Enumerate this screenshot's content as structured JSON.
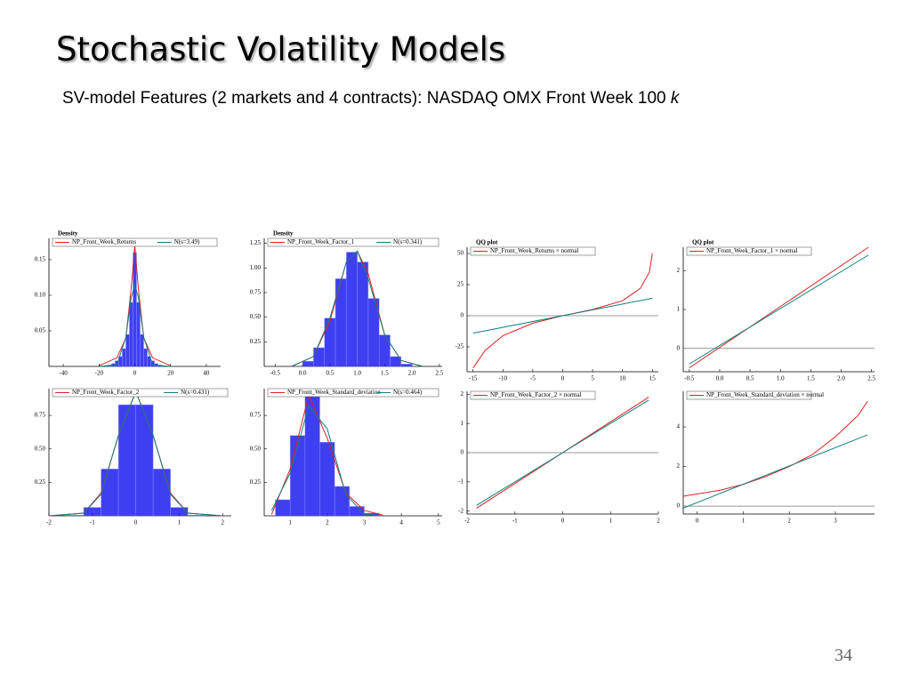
{
  "title": "Stochastic Volatility Models",
  "subtitle": "SV-model Features (2 markets and 4 contracts): NASDAQ OMX Front Week 100 ",
  "subtitle_italic": "k",
  "page_number": "34",
  "chart_data": [
    {
      "type": "histogram",
      "title": "Density",
      "color": "#0000ee",
      "bins": [
        -15,
        -13,
        -11,
        -9,
        -7,
        -5,
        -3,
        -1,
        1,
        3,
        5,
        7,
        9,
        11,
        13,
        15
      ],
      "counts": [
        0.002,
        0.004,
        0.008,
        0.014,
        0.025,
        0.045,
        0.09,
        0.16,
        0.09,
        0.045,
        0.025,
        0.014,
        0.008,
        0.004,
        0.002
      ],
      "series": [
        {
          "name": "NP_Front_Week_Returns",
          "color": "#e02020",
          "x": [
            -20,
            -10,
            -5,
            -2,
            0,
            2,
            5,
            10,
            20
          ],
          "values": [
            0.001,
            0.012,
            0.04,
            0.11,
            0.17,
            0.11,
            0.04,
            0.012,
            0.001
          ]
        },
        {
          "name": "N(s=3.49)",
          "color": "#108080",
          "x": [
            -20,
            -10,
            -5,
            -2,
            0,
            2,
            5,
            10,
            20
          ],
          "values": [
            0,
            0.002,
            0.041,
            0.097,
            0.114,
            0.097,
            0.041,
            0.002,
            0
          ]
        }
      ],
      "xlim": [
        -48,
        48
      ],
      "xticks": [
        -40,
        -20,
        0,
        20,
        40
      ],
      "ylim": [
        0,
        0.18
      ],
      "yticks": [
        0.05,
        {
          "value": 0.1,
          "label": "0.10"
        },
        0.15
      ]
    },
    {
      "type": "histogram",
      "title": "Density",
      "color": "#0000ee",
      "bins": [
        0,
        0.2,
        0.4,
        0.6,
        0.8,
        1,
        1.2,
        1.4,
        1.6,
        1.8,
        2
      ],
      "counts": [
        0.053,
        0.19,
        0.49,
        0.89,
        1.16,
        1.06,
        0.69,
        0.32,
        0.1,
        0.024
      ],
      "series": [
        {
          "name": "NP_Front_Week_Factor_1",
          "color": "#e02020",
          "x": [
            -0.2,
            0.2,
            0.5,
            0.8,
            1,
            1.2,
            1.5,
            1.8,
            2.2
          ],
          "values": [
            0,
            0.1,
            0.46,
            1.06,
            1.17,
            0.94,
            0.32,
            0.06,
            0
          ]
        },
        {
          "name": "N(s=0.341)",
          "color": "#108080",
          "x": [
            -0.2,
            0.2,
            0.5,
            0.8,
            1,
            1.2,
            1.5,
            1.8,
            2.2
          ],
          "values": [
            0,
            0.1,
            0.49,
            1.06,
            1.17,
            0.89,
            0.32,
            0.06,
            0
          ]
        }
      ],
      "xlim": [
        -0.7,
        2.55
      ],
      "xticks": [
        -0.5,
        {
          "value": 0,
          "label": "0.0"
        },
        0.5,
        {
          "value": 1,
          "label": "1.0"
        },
        1.5,
        {
          "value": 2,
          "label": "2.0"
        },
        2.5
      ],
      "ylim": [
        0,
        1.3
      ],
      "yticks": [
        0.25,
        {
          "value": 0.5,
          "label": "0.50"
        },
        0.75,
        {
          "value": 1,
          "label": "1.00"
        },
        1.25
      ]
    },
    {
      "type": "qq",
      "title": "QQ plot",
      "hline": 0,
      "series": [
        {
          "name": "NP_Front_Week_Returns × normal",
          "color": "#e02020",
          "x": [
            -15,
            -13,
            -10,
            -5,
            0,
            5,
            10,
            13,
            14.5,
            15
          ],
          "values": [
            -42,
            -28,
            -16,
            -6,
            0,
            5,
            12,
            22,
            35,
            50
          ]
        },
        {
          "color": "#108080",
          "x": [
            -15,
            15
          ],
          "values": [
            -14,
            14
          ]
        }
      ],
      "xlim": [
        -16,
        16
      ],
      "xticks": [
        -15,
        -10,
        -5,
        0,
        5,
        10,
        15
      ],
      "ylim": [
        -45,
        55
      ],
      "yticks": [
        -25,
        0,
        25,
        50
      ]
    },
    {
      "type": "qq",
      "title": "QQ plot",
      "hline": 0,
      "series": [
        {
          "name": "NP_Front_Week_Factor_1 × normal",
          "color": "#e02020",
          "x": [
            -0.5,
            2.45
          ],
          "values": [
            -0.5,
            2.6
          ]
        },
        {
          "color": "#108080",
          "x": [
            -0.5,
            2.45
          ],
          "values": [
            -0.4,
            2.4
          ]
        }
      ],
      "xlim": [
        -0.6,
        2.55
      ],
      "xticks": [
        -0.5,
        {
          "value": 0,
          "label": "0.0"
        },
        0.5,
        {
          "value": 1,
          "label": "1.0"
        },
        1.5,
        {
          "value": 2,
          "label": "2.0"
        },
        2.5
      ],
      "ylim": [
        -0.6,
        2.6
      ],
      "yticks": [
        0,
        1,
        2
      ]
    },
    {
      "type": "histogram",
      "color": "#0000ee",
      "bins": [
        -1.6,
        -1.2,
        -0.8,
        -0.4,
        0,
        0.4,
        0.8,
        1.2,
        1.6
      ],
      "counts": [
        0.005,
        0.063,
        0.35,
        0.83,
        0.83,
        0.35,
        0.063,
        0.005
      ],
      "series": [
        {
          "name": "NP_Front_Week_Factor_2",
          "color": "#e02020",
          "x": [
            -2,
            -1.2,
            -0.8,
            -0.4,
            0,
            0.4,
            0.8,
            1.2,
            2
          ],
          "values": [
            0,
            0.02,
            0.17,
            0.6,
            0.93,
            0.6,
            0.17,
            0.02,
            0
          ]
        },
        {
          "name": "N(s=0.431)",
          "color": "#108080",
          "x": [
            -2,
            -1.2,
            -0.8,
            -0.4,
            0,
            0.4,
            0.8,
            1.2,
            2
          ],
          "values": [
            0,
            0.02,
            0.16,
            0.6,
            0.926,
            0.6,
            0.16,
            0.02,
            0
          ]
        }
      ],
      "xlim": [
        -2,
        2.2
      ],
      "xticks": [
        -2,
        -1,
        0,
        1,
        2
      ],
      "ylim": [
        0,
        0.95
      ],
      "yticks": [
        0.25,
        {
          "value": 0.5,
          "label": "0.50"
        },
        0.75
      ]
    },
    {
      "type": "histogram",
      "color": "#0000ee",
      "bins": [
        0.6,
        1,
        1.4,
        1.8,
        2.2,
        2.6,
        3,
        3.4
      ],
      "counts": [
        0.12,
        0.6,
        0.9,
        0.55,
        0.22,
        0.07,
        0.02
      ],
      "series": [
        {
          "name": "NP_Front_Week_Standard_deviation",
          "color": "#e02020",
          "x": [
            0.5,
            1,
            1.5,
            2,
            2.5,
            3,
            3.5
          ],
          "values": [
            0.01,
            0.35,
            0.9,
            0.58,
            0.17,
            0.04,
            0.005
          ]
        },
        {
          "name": "N(s=0.464)",
          "color": "#108080",
          "x": [
            0.5,
            1,
            1.5,
            2,
            2.5,
            3,
            3.5
          ],
          "values": [
            0.04,
            0.32,
            0.82,
            0.65,
            0.16,
            0.012,
            0
          ]
        }
      ],
      "xlim": [
        0.3,
        5.1
      ],
      "xticks": [
        1,
        2,
        3,
        4,
        5
      ],
      "ylim": [
        0,
        0.95
      ],
      "yticks": [
        0.25,
        {
          "value": 0.5,
          "label": "0.50"
        },
        0.75
      ]
    },
    {
      "type": "qq",
      "hline": 0,
      "series": [
        {
          "name": "NP_Front_Week_Factor_2 × normal",
          "color": "#e02020",
          "x": [
            -1.8,
            1.8
          ],
          "values": [
            -1.9,
            1.9
          ]
        },
        {
          "color": "#108080",
          "x": [
            -1.8,
            1.8
          ],
          "values": [
            -1.8,
            1.8
          ]
        }
      ],
      "xlim": [
        -2,
        2
      ],
      "xticks": [
        -2,
        -1,
        0,
        1,
        2
      ],
      "ylim": [
        -2.1,
        2.1
      ],
      "yticks": [
        -2,
        -1,
        0,
        1,
        2
      ]
    },
    {
      "type": "qq",
      "hline": 0,
      "series": [
        {
          "name": "NP_Front_Week_Standard_deviation × normal",
          "color": "#e02020",
          "x": [
            -0.3,
            0.5,
            1,
            1.5,
            2,
            2.5,
            3,
            3.5,
            3.7
          ],
          "values": [
            0.5,
            0.8,
            1.1,
            1.5,
            2,
            2.6,
            3.5,
            4.6,
            5.3
          ]
        },
        {
          "color": "#108080",
          "x": [
            -0.3,
            3.7
          ],
          "values": [
            -0.1,
            3.6
          ]
        }
      ],
      "xlim": [
        -0.3,
        3.85
      ],
      "xticks": [
        0,
        1,
        2,
        3
      ],
      "ylim": [
        -0.4,
        5.8
      ],
      "yticks": [
        0,
        2,
        4
      ]
    }
  ]
}
